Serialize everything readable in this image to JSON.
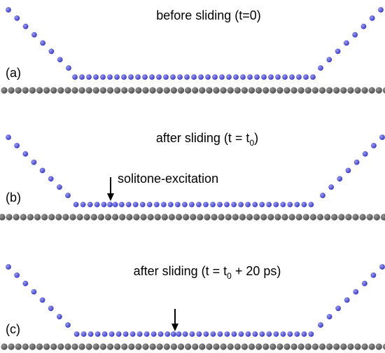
{
  "colors": {
    "adsorbate": "#3535c8",
    "adsorbate_highlight": "#9a9af0",
    "substrate": "#4a4a4a",
    "substrate_highlight": "#9a9a9a",
    "arrow": "#000000"
  },
  "panels": [
    {
      "id": "a",
      "label": "(a)",
      "title": {
        "main": "before sliding (t=0)",
        "sub": "",
        "tail": ""
      },
      "annotation": "",
      "arrow": false
    },
    {
      "id": "b",
      "label": "(b)",
      "title": {
        "main": "after sliding (t = t",
        "sub": "0",
        "tail": ")"
      },
      "annotation": "solitone-excitation",
      "arrow": true
    },
    {
      "id": "c",
      "label": "(c)",
      "title": {
        "main": "after sliding (t = t",
        "sub": "0",
        "tail": " + 20 ps)"
      },
      "annotation": "",
      "arrow": true
    }
  ]
}
